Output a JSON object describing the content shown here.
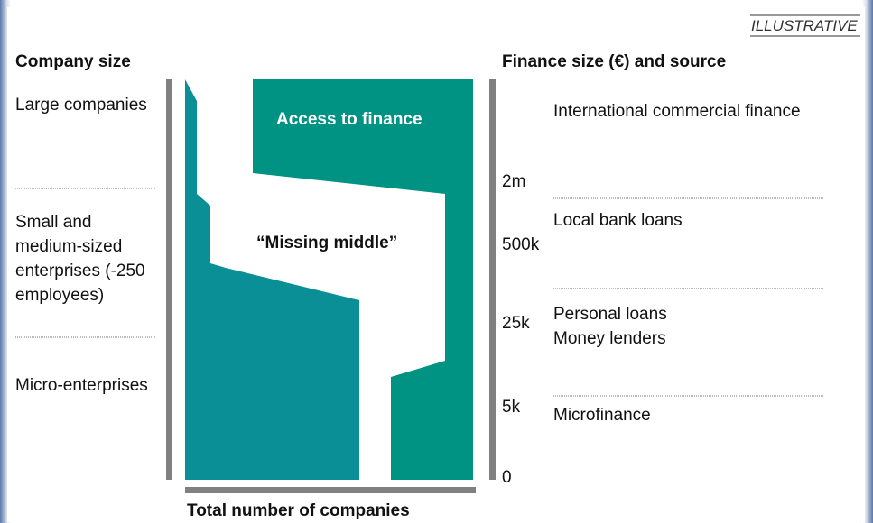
{
  "header": {
    "tag": "ILLUSTRATIVE"
  },
  "left": {
    "title": "Company size",
    "rows": [
      {
        "lines": [
          "Large companies"
        ]
      },
      {
        "lines": [
          "Small and",
          "medium-sized",
          "enterprises (-250",
          "employees)"
        ]
      },
      {
        "lines": [
          "Micro-enterprises"
        ]
      }
    ]
  },
  "diagram": {
    "access": "Access to finance",
    "gap": "“Missing middle”",
    "x_label": "Total number of companies",
    "scale": [
      "2m",
      "500k",
      "25k",
      "5k",
      "0"
    ]
  },
  "right": {
    "title": "Finance size (€) and source",
    "rows": [
      {
        "lines": [
          "International commercial finance"
        ]
      },
      {
        "lines": [
          "Local bank loans"
        ]
      },
      {
        "lines": [
          "Personal loans",
          "Money lenders"
        ]
      },
      {
        "lines": [
          "Microfinance"
        ]
      }
    ]
  }
}
